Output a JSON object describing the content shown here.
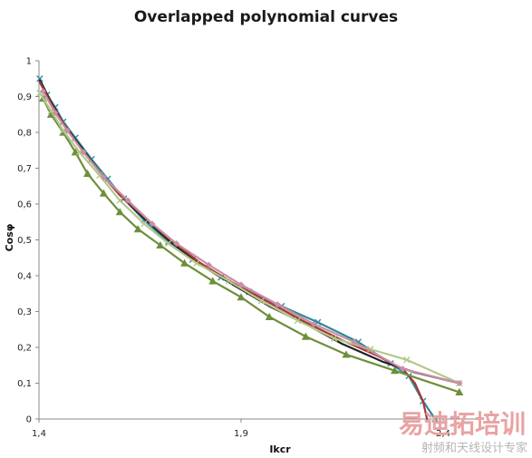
{
  "chart_data": {
    "type": "line",
    "title": "Overlapped polynomial curves",
    "xlabel": "Ikcr",
    "ylabel": "Cosφ",
    "xlim": [
      1.4,
      2.5
    ],
    "ylim": [
      0,
      1
    ],
    "x_tick_labels": [
      {
        "value": 1.4,
        "label": "1,4"
      },
      {
        "value": 1.9,
        "label": "1,9"
      },
      {
        "value": 2.4,
        "label": "2,4"
      }
    ],
    "y_tick_labels": [
      {
        "value": 0,
        "label": "0"
      },
      {
        "value": 0.1,
        "label": "0,1"
      },
      {
        "value": 0.2,
        "label": "0,2"
      },
      {
        "value": 0.3,
        "label": "0,3"
      },
      {
        "value": 0.4,
        "label": "0,4"
      },
      {
        "value": 0.5,
        "label": "0,5"
      },
      {
        "value": 0.6,
        "label": "0,6"
      },
      {
        "value": 0.7,
        "label": "0,7"
      },
      {
        "value": 0.8,
        "label": "0,8"
      },
      {
        "value": 0.9,
        "label": "0,9"
      },
      {
        "value": 1,
        "label": "1"
      }
    ],
    "grid": false,
    "legend": "none",
    "series": [
      {
        "color": "#2e8b9a",
        "marker": "x",
        "points": [
          [
            1.402,
            0.95
          ],
          [
            1.42,
            0.905
          ],
          [
            1.44,
            0.87
          ],
          [
            1.46,
            0.83
          ],
          [
            1.49,
            0.785
          ],
          [
            1.53,
            0.725
          ],
          [
            1.57,
            0.67
          ],
          [
            1.61,
            0.615
          ],
          [
            1.66,
            0.555
          ],
          [
            1.72,
            0.495
          ],
          [
            1.78,
            0.445
          ],
          [
            1.85,
            0.395
          ],
          [
            1.92,
            0.355
          ],
          [
            2.0,
            0.315
          ],
          [
            2.09,
            0.27
          ],
          [
            2.19,
            0.215
          ],
          [
            2.27,
            0.155
          ],
          [
            2.315,
            0.12
          ],
          [
            2.35,
            0.05
          ],
          [
            2.38,
            0.0
          ]
        ]
      },
      {
        "color": "#222222",
        "marker": "none",
        "points": [
          [
            1.402,
            0.945
          ],
          [
            1.43,
            0.885
          ],
          [
            1.46,
            0.825
          ],
          [
            1.5,
            0.765
          ],
          [
            1.55,
            0.69
          ],
          [
            1.6,
            0.625
          ],
          [
            1.66,
            0.56
          ],
          [
            1.72,
            0.5
          ],
          [
            1.8,
            0.43
          ],
          [
            1.88,
            0.375
          ],
          [
            1.97,
            0.315
          ],
          [
            2.06,
            0.265
          ],
          [
            2.15,
            0.21
          ],
          [
            2.25,
            0.16
          ],
          [
            2.33,
            0.13
          ],
          [
            2.44,
            0.1
          ]
        ]
      },
      {
        "color": "#a83838",
        "marker": "none",
        "points": [
          [
            1.402,
            0.94
          ],
          [
            1.43,
            0.88
          ],
          [
            1.46,
            0.825
          ],
          [
            1.5,
            0.76
          ],
          [
            1.55,
            0.69
          ],
          [
            1.6,
            0.625
          ],
          [
            1.66,
            0.565
          ],
          [
            1.72,
            0.505
          ],
          [
            1.8,
            0.435
          ],
          [
            1.88,
            0.38
          ],
          [
            1.97,
            0.325
          ],
          [
            2.06,
            0.27
          ],
          [
            2.15,
            0.22
          ],
          [
            2.24,
            0.175
          ],
          [
            2.3,
            0.14
          ],
          [
            2.33,
            0.1
          ],
          [
            2.35,
            0.05
          ],
          [
            2.36,
            0.0
          ]
        ]
      },
      {
        "color": "#6d8f3b",
        "marker": "triangle",
        "points": [
          [
            1.41,
            0.895
          ],
          [
            1.43,
            0.85
          ],
          [
            1.46,
            0.8
          ],
          [
            1.49,
            0.745
          ],
          [
            1.52,
            0.685
          ],
          [
            1.56,
            0.63
          ],
          [
            1.6,
            0.578
          ],
          [
            1.645,
            0.53
          ],
          [
            1.7,
            0.485
          ],
          [
            1.76,
            0.435
          ],
          [
            1.83,
            0.385
          ],
          [
            1.9,
            0.34
          ],
          [
            1.97,
            0.285
          ],
          [
            2.06,
            0.23
          ],
          [
            2.16,
            0.18
          ],
          [
            2.28,
            0.135
          ],
          [
            2.44,
            0.075
          ]
        ]
      },
      {
        "color": "#b1c98a",
        "marker": "x",
        "points": [
          [
            1.402,
            0.91
          ],
          [
            1.43,
            0.86
          ],
          [
            1.46,
            0.805
          ],
          [
            1.5,
            0.745
          ],
          [
            1.55,
            0.68
          ],
          [
            1.6,
            0.61
          ],
          [
            1.66,
            0.545
          ],
          [
            1.72,
            0.49
          ],
          [
            1.79,
            0.435
          ],
          [
            1.87,
            0.385
          ],
          [
            1.95,
            0.33
          ],
          [
            2.04,
            0.275
          ],
          [
            2.13,
            0.225
          ],
          [
            2.22,
            0.195
          ],
          [
            2.31,
            0.165
          ],
          [
            2.44,
            0.1
          ]
        ]
      },
      {
        "color": "#c98ea5",
        "marker": "diamond",
        "points": [
          [
            1.41,
            0.915
          ],
          [
            1.44,
            0.855
          ],
          [
            1.47,
            0.805
          ],
          [
            1.51,
            0.745
          ],
          [
            1.56,
            0.675
          ],
          [
            1.62,
            0.61
          ],
          [
            1.68,
            0.545
          ],
          [
            1.74,
            0.49
          ],
          [
            1.82,
            0.43
          ],
          [
            1.9,
            0.375
          ],
          [
            1.99,
            0.32
          ],
          [
            2.08,
            0.265
          ],
          [
            2.18,
            0.215
          ],
          [
            2.3,
            0.14
          ],
          [
            2.44,
            0.1
          ]
        ]
      }
    ]
  },
  "watermark": {
    "line1": "易迪拓培训",
    "line2": "射频和天线设计专家"
  }
}
